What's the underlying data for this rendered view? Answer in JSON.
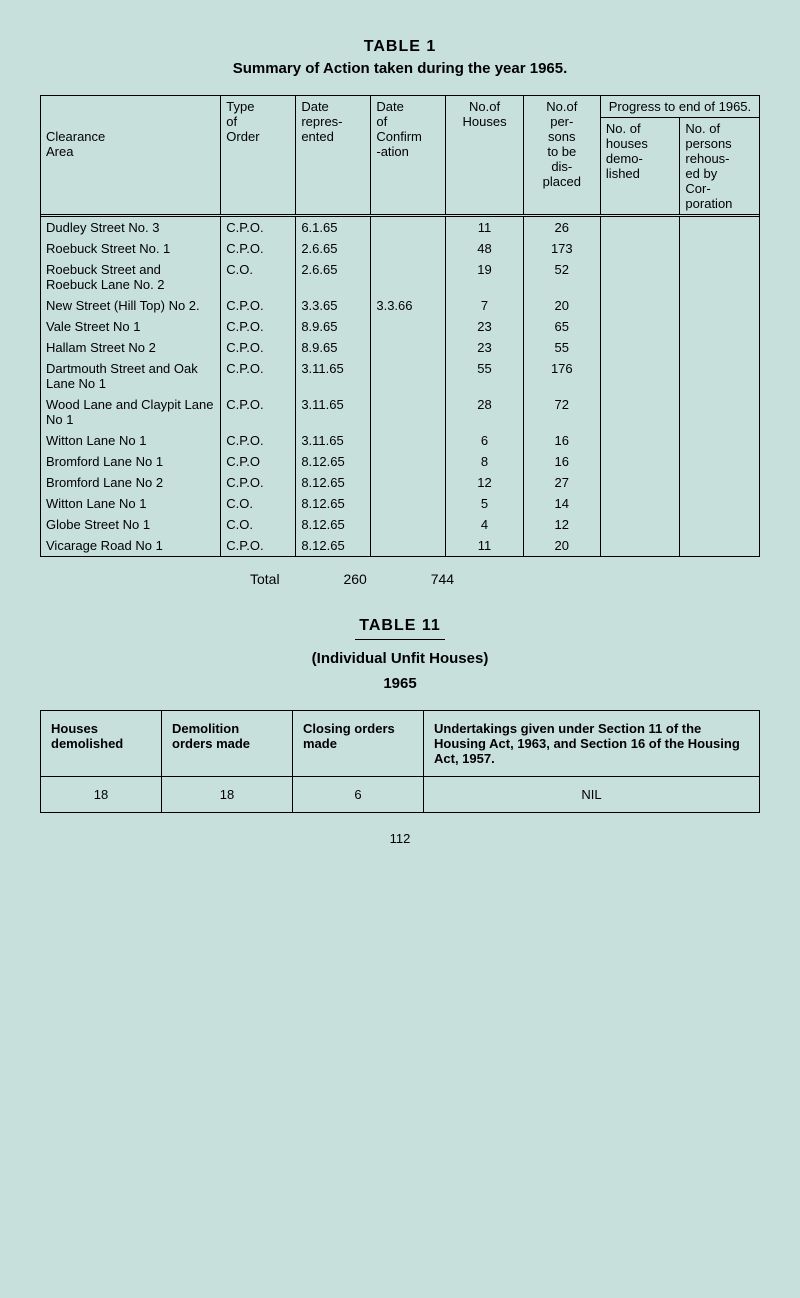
{
  "table1": {
    "heading": "TABLE 1",
    "subtitle": "Summary of Action taken during the year 1965.",
    "headers": {
      "area": "Clearance\nArea",
      "type": "Type of Order",
      "date_rep": "Date repres-ented",
      "date_conf": "Date of Confirm-ation",
      "houses": "No.of Houses",
      "persons": "No.of per-sons to be dis-placed",
      "progress": "Progress to end of 1965.",
      "p_houses": "No. of houses demo-lished",
      "p_persons": "No. of persons rehous-ed by Cor-poration"
    },
    "rows": [
      {
        "area": "Dudley Street No. 3",
        "type": "C.P.O.",
        "d1": "6.1.65",
        "d2": "",
        "h": "11",
        "p": "26"
      },
      {
        "area": "Roebuck Street No. 1",
        "type": "C.P.O.",
        "d1": "2.6.65",
        "d2": "",
        "h": "48",
        "p": "173"
      },
      {
        "area": "Roebuck Street and Roebuck Lane No. 2",
        "type": "C.O.",
        "d1": "2.6.65",
        "d2": "",
        "h": "19",
        "p": "52"
      },
      {
        "area": "New Street (Hill Top) No 2.",
        "type": "C.P.O.",
        "d1": "3.3.65",
        "d2": "3.3.66",
        "h": "7",
        "p": "20"
      },
      {
        "area": "Vale Street No 1",
        "type": "C.P.O.",
        "d1": "8.9.65",
        "d2": "",
        "h": "23",
        "p": "65"
      },
      {
        "area": "Hallam Street No 2",
        "type": "C.P.O.",
        "d1": "8.9.65",
        "d2": "",
        "h": "23",
        "p": "55"
      },
      {
        "area": "Dartmouth Street and Oak Lane No 1",
        "type": "C.P.O.",
        "d1": "3.11.65",
        "d2": "",
        "h": "55",
        "p": "176"
      },
      {
        "area": "Wood Lane and Claypit Lane No 1",
        "type": "C.P.O.",
        "d1": "3.11.65",
        "d2": "",
        "h": "28",
        "p": "72"
      },
      {
        "area": "Witton Lane No 1",
        "type": "C.P.O.",
        "d1": "3.11.65",
        "d2": "",
        "h": "6",
        "p": "16"
      },
      {
        "area": "Bromford Lane No 1",
        "type": "C.P.O",
        "d1": "8.12.65",
        "d2": "",
        "h": "8",
        "p": "16"
      },
      {
        "area": "Bromford Lane No 2",
        "type": "C.P.O.",
        "d1": "8.12.65",
        "d2": "",
        "h": "12",
        "p": "27"
      },
      {
        "area": "Witton Lane No 1",
        "type": "C.O.",
        "d1": "8.12.65",
        "d2": "",
        "h": "5",
        "p": "14"
      },
      {
        "area": "Globe Street No 1",
        "type": "C.O.",
        "d1": "8.12.65",
        "d2": "",
        "h": "4",
        "p": "12"
      },
      {
        "area": "Vicarage Road No 1",
        "type": "C.P.O.",
        "d1": "8.12.65",
        "d2": "",
        "h": "11",
        "p": "20"
      }
    ],
    "total_label": "Total",
    "total_houses": "260",
    "total_persons": "744"
  },
  "table2": {
    "heading": "TABLE 11",
    "subtitle1": "(Individual Unfit Houses)",
    "subtitle2": "1965",
    "headers": {
      "h1": "Houses demolished",
      "h2": "Demolition orders made",
      "h3": "Closing orders made",
      "h4": "Undertakings given under Section 11 of the Housing Act, 1963, and Section 16 of the Housing Act, 1957."
    },
    "row": {
      "c1": "18",
      "c2": "18",
      "c3": "6",
      "c4": "NIL"
    }
  },
  "page_number": "112"
}
